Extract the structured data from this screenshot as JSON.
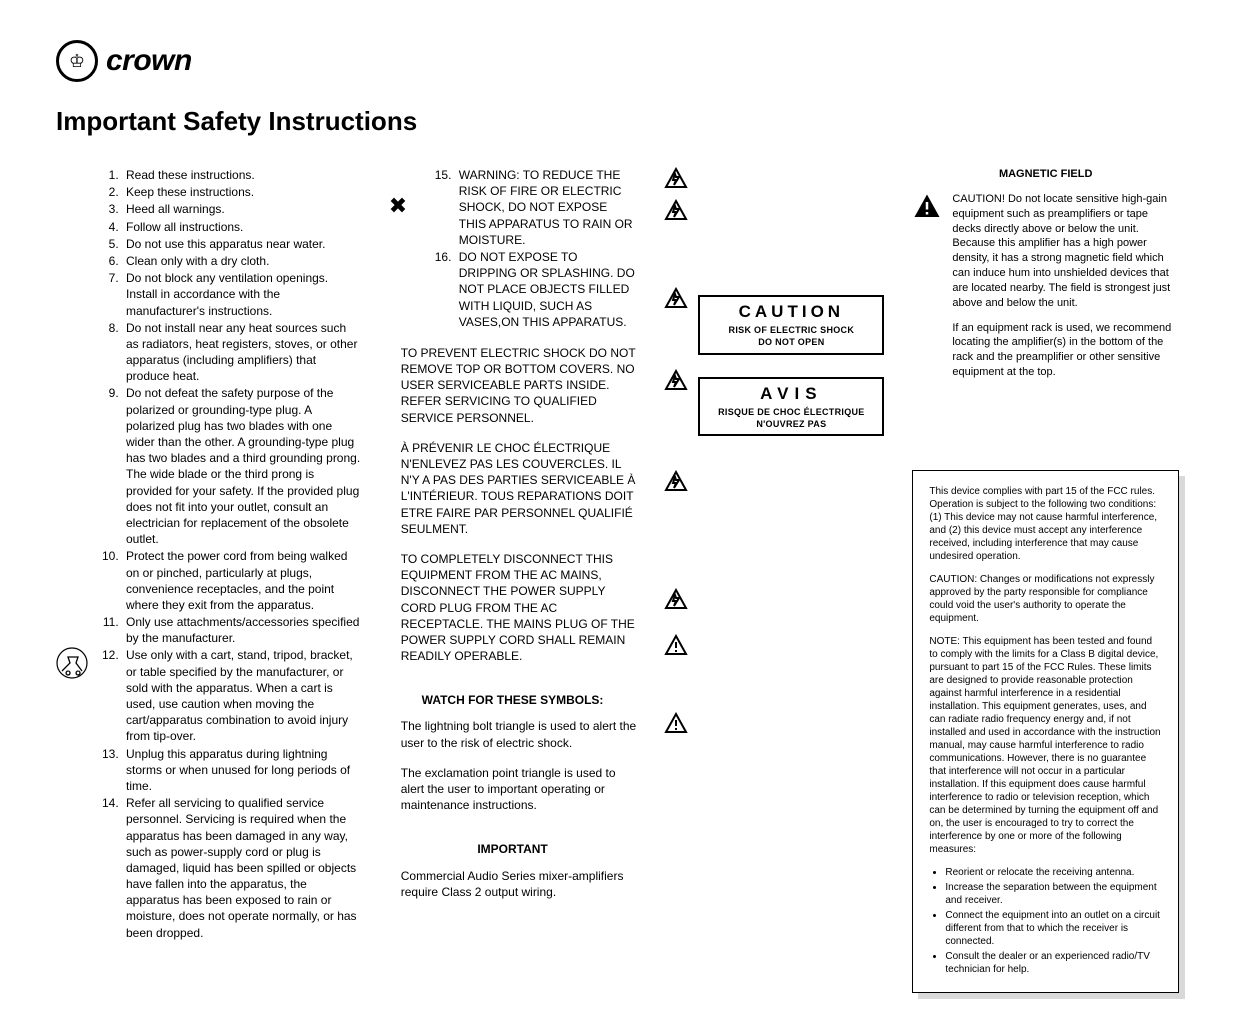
{
  "brand": "crown",
  "title": "Important Safety Instructions",
  "instructions_left": [
    "Read these instructions.",
    "Keep these instructions.",
    "Heed all warnings.",
    "Follow all instructions.",
    "Do not use this apparatus near water.",
    "Clean only with a dry cloth.",
    "Do not block any ventilation openings. Install in accordance with the manufacturer's instructions.",
    "Do not install near any heat sources such as radiators, heat registers, stoves, or other apparatus (including amplifiers) that produce heat.",
    "Do not defeat the safety purpose of the polarized or grounding-type plug. A polarized plug has two blades with one wider than the other. A grounding-type plug has two blades and a third grounding prong. The wide blade or the third prong is provided for your safety. If the provided plug does not fit into your outlet, consult an electrician for replacement of the obsolete outlet.",
    "Protect the power cord from being walked on or pinched, particularly at plugs, convenience receptacles, and the point where they exit from the apparatus.",
    "Only use attachments/accessories specified by the manufacturer.",
    "Use only with a cart, stand, tripod, bracket, or table specified by the manufacturer, or sold with the apparatus. When a cart is used, use caution when moving the cart/apparatus combination to avoid injury from tip-over.",
    "Unplug this apparatus during lightning storms or when unused for long periods of time.",
    "Refer all servicing to qualified service personnel. Servicing is required when the apparatus has been damaged in any way, such as power-supply cord or plug is damaged, liquid has been spilled or objects have fallen into the apparatus, the apparatus has been exposed to rain or moisture, does not operate normally, or has been dropped."
  ],
  "instructions_mid": [
    "WARNING: TO REDUCE THE RISK OF FIRE OR ELECTRIC SHOCK, DO NOT EXPOSE THIS APPARATUS TO RAIN OR MOISTURE.",
    "DO NOT EXPOSE TO DRIPPING OR SPLASHING. DO NOT PLACE OBJECTS FILLED WITH LIQUID, SUCH AS VASES,ON THIS APPARATUS."
  ],
  "block_prevent": "TO PREVENT ELECTRIC SHOCK DO NOT REMOVE TOP OR BOTTOM COVERS. NO USER SERVICEABLE PARTS INSIDE. REFER SERVICING TO QUALIFIED SERVICE PERSONNEL.",
  "block_fr": "À PRÉVENIR LE CHOC ÉLECTRIQUE N'ENLEVEZ PAS LES COUVERCLES. IL N'Y A PAS DES PARTIES SERVICEABLE À L'INTÉRIEUR. TOUS REPARATIONS DOIT ETRE FAIRE PAR PERSONNEL QUALIFIÉ SEULMENT.",
  "block_disconnect": "TO COMPLETELY DISCONNECT THIS EQUIPMENT FROM THE AC MAINS, DISCONNECT THE POWER SUPPLY CORD PLUG FROM THE AC RECEPTACLE. THE MAINS PLUG OF THE POWER SUPPLY CORD SHALL REMAIN READILY OPERABLE.",
  "watch_title": "WATCH FOR THESE SYMBOLS:",
  "watch_bolt": "The lightning bolt triangle is used to alert the user to the risk of electric shock.",
  "watch_excl": "The exclamation point triangle is used to alert the user to important operating or maintenance instructions.",
  "important_title": "IMPORTANT",
  "important_text": "Commercial Audio Series mixer-amplifiers require Class 2 output wiring.",
  "caution": {
    "title": "CAUTION",
    "sub1": "RISK OF ELECTRIC SHOCK",
    "sub2": "DO NOT OPEN"
  },
  "avis": {
    "title": "AVIS",
    "sub1": "RISQUE DE CHOC ÉLECTRIQUE",
    "sub2": "N'OUVREZ PAS"
  },
  "mag": {
    "title": "MAGNETIC FIELD",
    "p1": "CAUTION! Do not locate sensitive high-gain equipment such as preamplifiers or tape decks directly above or below the unit. Because this amplifier has a high power density, it has a strong magnetic field which can induce hum into unshielded devices that are located nearby. The field is strongest just above and below the unit.",
    "p2": "If an equipment rack is used, we recommend locating the amplifier(s) in the bottom of the rack and the preamplifier or other sensitive equipment at the top."
  },
  "fcc": {
    "p1": "This device complies with part 15 of the FCC rules. Operation is subject to the following two conditions: (1) This device may not cause harmful interference, and (2) this device must accept any interference received, including interference that may cause undesired operation.",
    "p2": "CAUTION: Changes or modifications not expressly approved by the party responsible for compliance could void the user's authority to operate the equipment.",
    "p3": "NOTE: This equipment has been tested and found to comply with the limits for a Class B digital device, pursuant to part 15 of the FCC Rules. These limits are designed to provide reasonable protection against harmful interference in a residential installation. This equipment generates, uses, and can radiate radio frequency energy and, if not installed and used in accordance with the instruction manual, may cause harmful interference to radio communications. However, there is no guarantee that interference will not occur in a particular installation. If this equipment does cause harmful interference to radio or television reception, which can be determined by turning the equipment off and on, the user is encouraged to try to correct the interference by one or more of the following measures:",
    "bullets": [
      "Reorient or relocate the receiving antenna.",
      "Increase the separation between the equipment and receiver.",
      "Connect the equipment into an outlet on a circuit different from that to which the receiver is connected.",
      "Consult the dealer or an experienced radio/TV technician for help."
    ]
  },
  "colors": {
    "text": "#000000",
    "bg": "#ffffff",
    "shadow": "#d9d9d9"
  }
}
